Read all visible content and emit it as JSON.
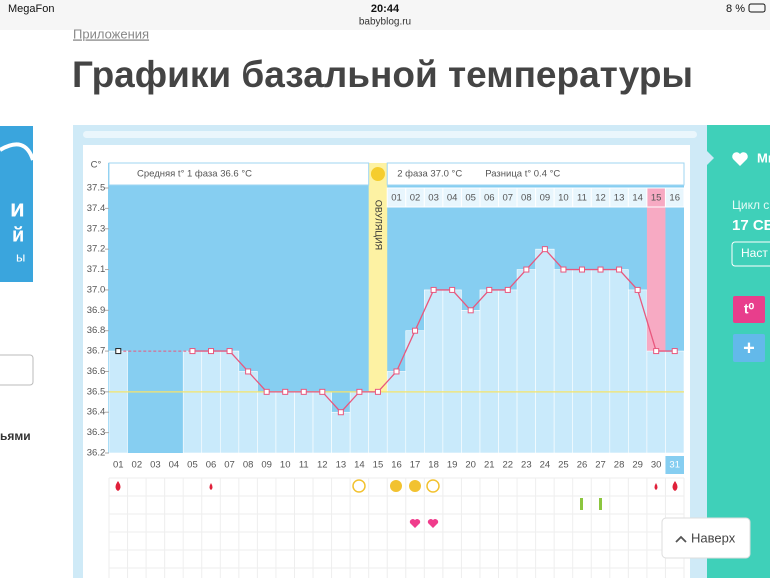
{
  "status_bar": {
    "carrier": "MegaFon",
    "time": "20:44",
    "url": "babyblog.ru",
    "battery": "8 %"
  },
  "breadcrumb": "Приложения",
  "title": "Графики базальной температуры",
  "left_sidebar": {
    "ad_letters": [
      "и",
      "й",
      "ы"
    ],
    "text": "ьями"
  },
  "chart_data": {
    "type": "line",
    "y_axis_label": "C°",
    "phase1_summary": "Средняя t° 1 фаза 36.6 °C",
    "phase2_summary": "2 фаза 37.0 °C",
    "difference": "Разница t° 0.4 °C",
    "ovulation_label": "ОВУЛЯЦИЯ",
    "categories": [
      "01",
      "02",
      "03",
      "04",
      "05",
      "06",
      "07",
      "08",
      "09",
      "10",
      "11",
      "12",
      "13",
      "14",
      "15",
      "16",
      "17",
      "18",
      "19",
      "20",
      "21",
      "22",
      "23",
      "24",
      "25",
      "26",
      "27",
      "28",
      "29",
      "30",
      "31"
    ],
    "phase2_days": [
      "01",
      "02",
      "03",
      "04",
      "05",
      "06",
      "07",
      "08",
      "09",
      "10",
      "11",
      "12",
      "13",
      "14",
      "15",
      "16"
    ],
    "values": [
      36.7,
      null,
      null,
      null,
      36.7,
      36.7,
      36.7,
      36.6,
      36.5,
      36.5,
      36.5,
      36.5,
      36.4,
      36.5,
      36.5,
      36.6,
      36.8,
      37.0,
      37.0,
      36.9,
      37.0,
      37.0,
      37.1,
      37.2,
      37.1,
      37.1,
      37.1,
      37.1,
      37.0,
      36.7,
      36.7
    ],
    "color": "#e8587e",
    "coverline": 36.5,
    "ylim": [
      36.2,
      37.5
    ],
    "yticks": [
      37.5,
      37.4,
      37.3,
      37.2,
      37.1,
      {
        "value": 37,
        "label": "37.0"
      },
      36.9,
      36.8,
      36.7,
      36.6,
      36.5,
      36.4,
      36.3,
      36.2
    ],
    "grid": true
  },
  "right_panel": {
    "menu": "Ми",
    "cycle_label": "Цикл с",
    "cycle_date": "17 СЕ",
    "settings_button": "Наст",
    "temp_button": "t⁰",
    "add_button": "+"
  },
  "back_to_top": "Наверх"
}
